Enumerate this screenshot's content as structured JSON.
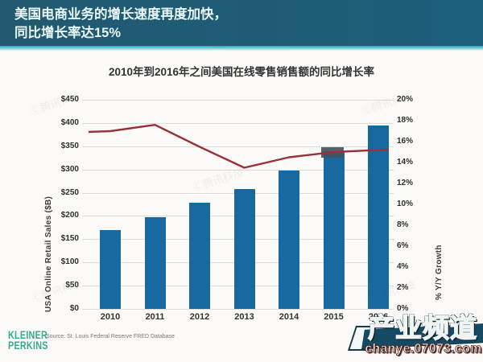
{
  "header": {
    "line1": "美国电商业务的增长速度再度加快，",
    "line2": "同比增长率达15%"
  },
  "chart_data": {
    "type": "bar",
    "title": "2010年到2016年之间美国在线零售销售额的同比增长率",
    "categories": [
      "2010",
      "2011",
      "2012",
      "2013",
      "2014",
      "2015",
      "2016"
    ],
    "series": [
      {
        "name": "USA Online Retail Sales ($B)",
        "type": "bar",
        "axis": "left",
        "color": "#1769a0",
        "values": [
          170,
          198,
          228,
          258,
          297,
          340,
          394
        ]
      },
      {
        "name": "% Y/Y Growth",
        "type": "line",
        "axis": "right",
        "color": "#9b3138",
        "values": [
          17.0,
          17.6,
          15.5,
          13.5,
          14.5,
          15.0,
          15.2
        ]
      }
    ],
    "left_axis": {
      "label": "USA Online Retail Sales ($B)",
      "min": 0,
      "max": 450,
      "step": 50,
      "ticks": [
        "$450",
        "$400",
        "$350",
        "$300",
        "$250",
        "$200",
        "$150",
        "$100",
        "$50",
        "$0"
      ]
    },
    "right_axis": {
      "label": "% Y/Y Growth",
      "min": 0,
      "max": 20,
      "step": 2,
      "ticks": [
        "20%",
        "18%",
        "16%",
        "14%",
        "12%",
        "10%",
        "8%",
        "6%",
        "4%",
        "2%",
        "0%"
      ]
    },
    "grid": true,
    "legend": "none"
  },
  "footer": {
    "logo_line1": "KLEINER",
    "logo_line2": "PERKINS",
    "source": "Source: St. Louis Federal Reserve FRED Database"
  },
  "watermarks": {
    "faint_text": "Ⓒ腾讯科技",
    "brand_title": "产业频道",
    "brand_url": "chanye.07073.com"
  },
  "colors": {
    "header_bg": "#1f5d76",
    "strip_teal": "#2aa2b6",
    "bar_blue": "#1769a0",
    "line_red": "#9b3138",
    "kp_green": "#36a98e"
  }
}
